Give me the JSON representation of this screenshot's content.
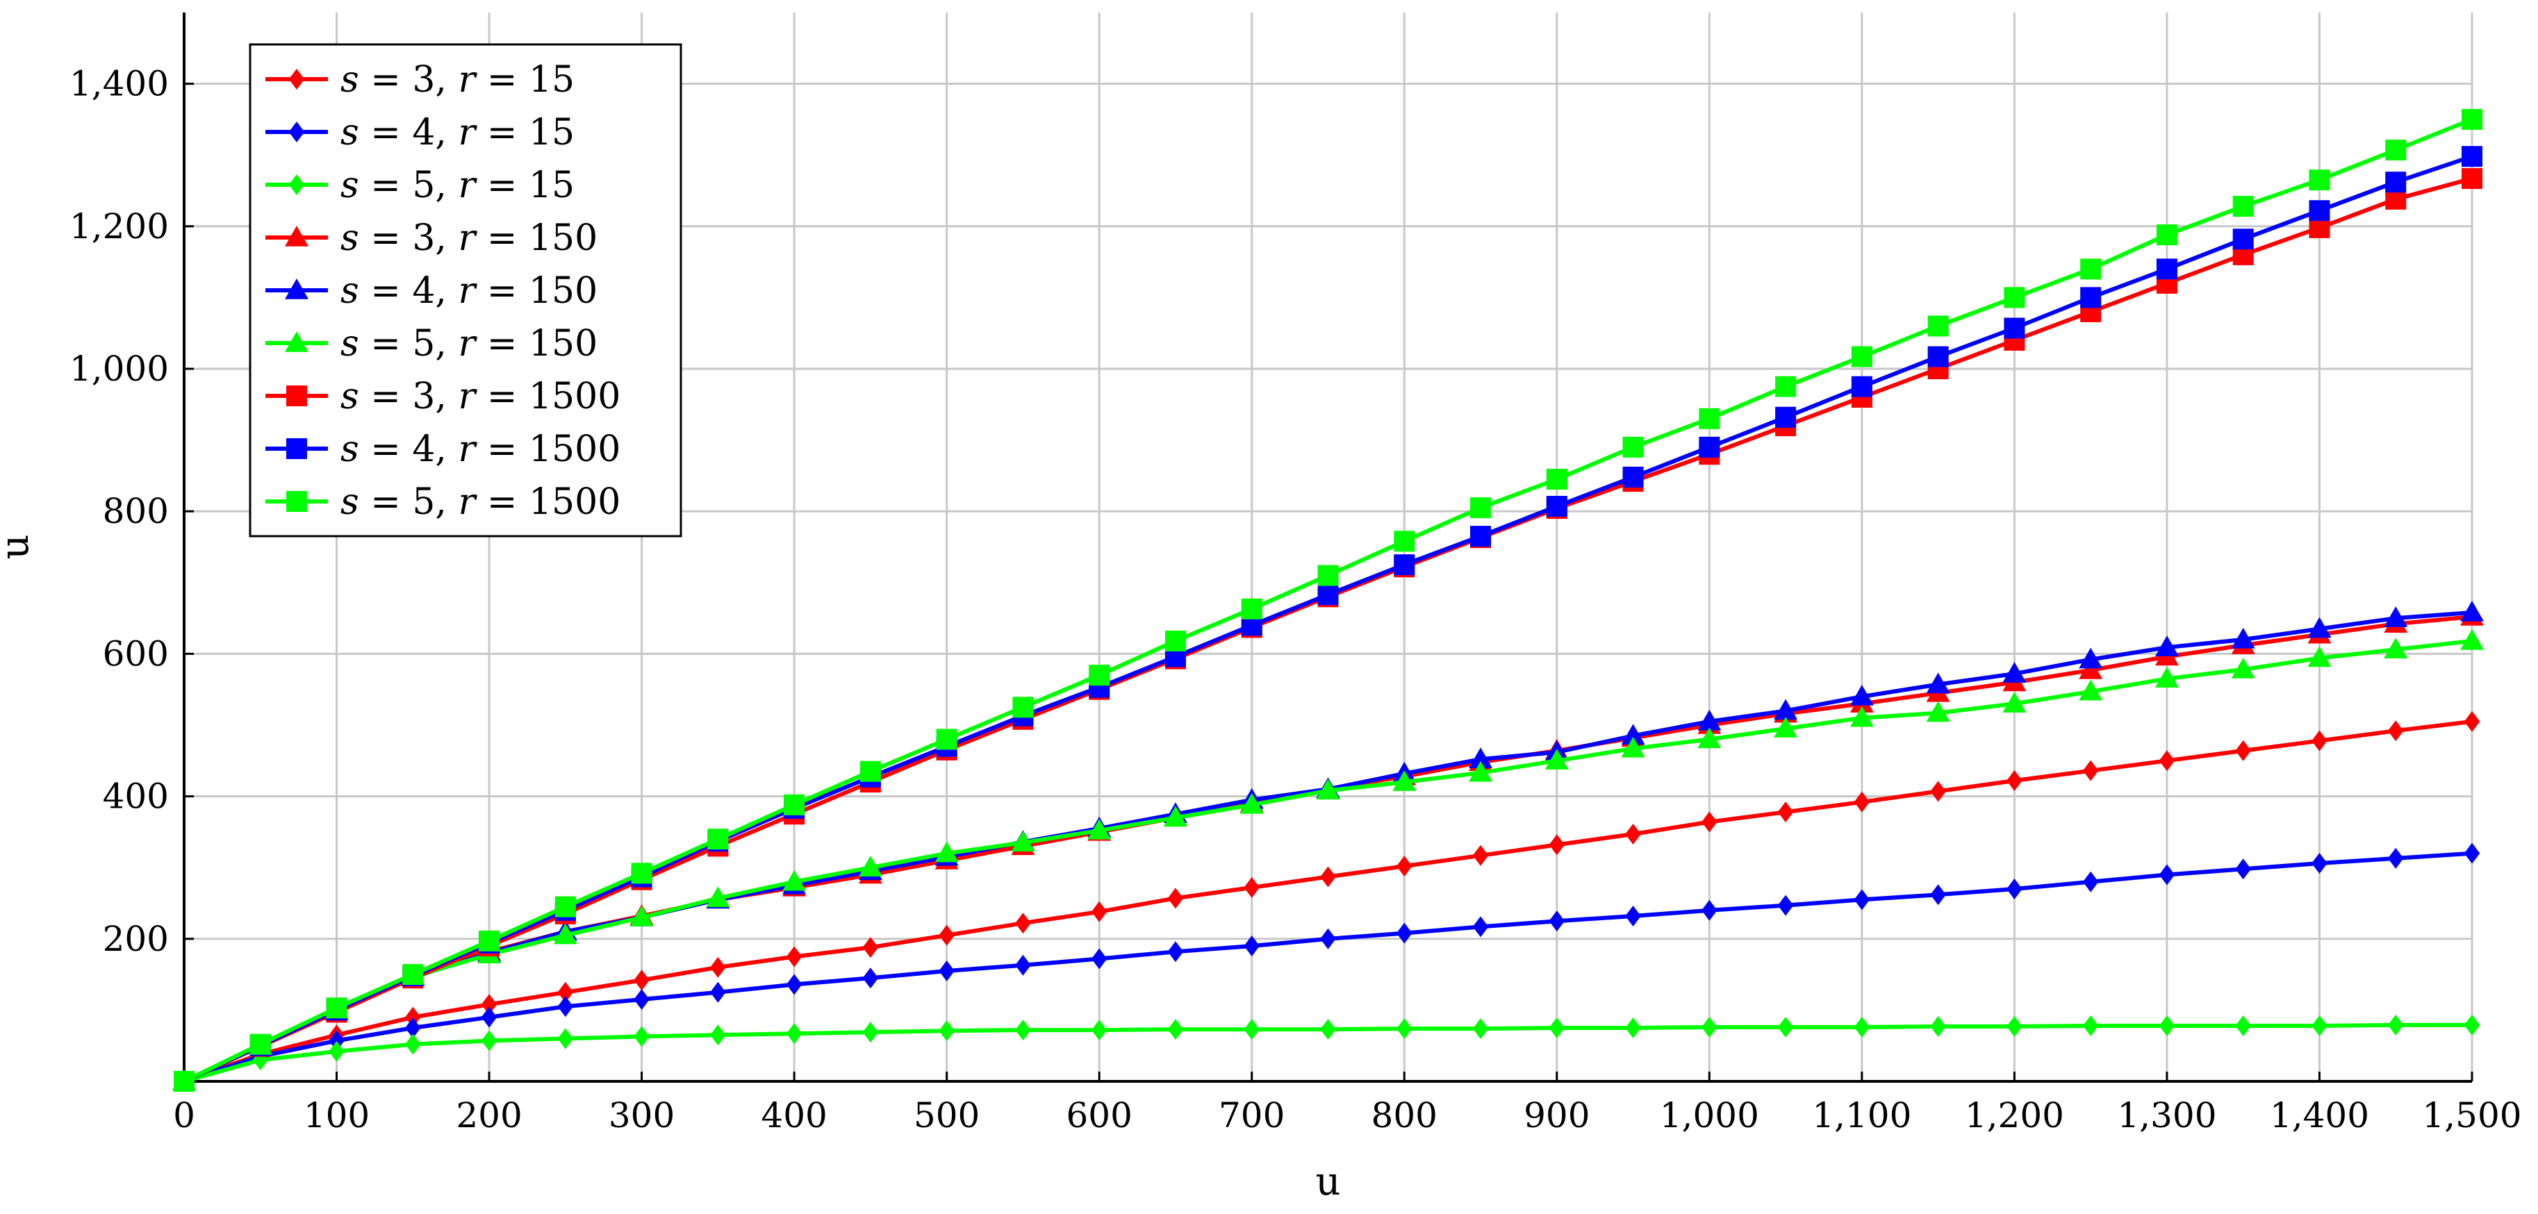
{
  "chart_data": {
    "type": "line",
    "title": "",
    "xlabel": "u",
    "ylabel": "u",
    "xlim": [
      0,
      1500
    ],
    "ylim": [
      0,
      1500
    ],
    "grid": true,
    "legend_position": "top-left",
    "xticks": [
      0,
      100,
      200,
      300,
      400,
      500,
      600,
      700,
      800,
      900,
      1000,
      1100,
      1200,
      1300,
      1400,
      1500
    ],
    "xtick_labels": [
      "0",
      "100",
      "200",
      "300",
      "400",
      "500",
      "600",
      "700",
      "800",
      "900",
      "1,000",
      "1,100",
      "1,200",
      "1,300",
      "1,400",
      "1,500"
    ],
    "yticks": [
      200,
      400,
      600,
      800,
      1000,
      1200,
      1400
    ],
    "ytick_labels": [
      "200",
      "400",
      "600",
      "800",
      "1,000",
      "1,200",
      "1,400"
    ],
    "series": [
      {
        "name": "s = 3, r = 15",
        "s": "3",
        "r": "15",
        "color": "#ff0000",
        "marker": "diamond",
        "x": [
          0,
          50,
          100,
          150,
          200,
          250,
          300,
          350,
          400,
          450,
          500,
          550,
          600,
          650,
          700,
          750,
          800,
          850,
          900,
          950,
          1000,
          1050,
          1100,
          1150,
          1200,
          1250,
          1300,
          1350,
          1400,
          1450,
          1500
        ],
        "y": [
          0,
          38,
          65,
          90,
          108,
          125,
          142,
          160,
          175,
          188,
          205,
          222,
          238,
          257,
          272,
          287,
          302,
          317,
          332,
          347,
          364,
          378,
          392,
          407,
          422,
          436,
          450,
          464,
          478,
          492,
          505
        ]
      },
      {
        "name": "s = 4, r = 15",
        "s": "4",
        "r": "15",
        "color": "#0000ff",
        "marker": "diamond",
        "x": [
          0,
          50,
          100,
          150,
          200,
          250,
          300,
          350,
          400,
          450,
          500,
          550,
          600,
          650,
          700,
          750,
          800,
          850,
          900,
          950,
          1000,
          1050,
          1100,
          1150,
          1200,
          1250,
          1300,
          1350,
          1400,
          1450,
          1500
        ],
        "y": [
          0,
          35,
          57,
          75,
          90,
          105,
          115,
          125,
          136,
          145,
          155,
          163,
          172,
          182,
          190,
          200,
          208,
          217,
          225,
          232,
          240,
          247,
          255,
          262,
          270,
          280,
          290,
          298,
          306,
          313,
          320
        ]
      },
      {
        "name": "s = 5, r = 15",
        "s": "5",
        "r": "15",
        "color": "#00ff00",
        "marker": "diamond",
        "x": [
          0,
          50,
          100,
          150,
          200,
          250,
          300,
          350,
          400,
          450,
          500,
          550,
          600,
          650,
          700,
          750,
          800,
          850,
          900,
          950,
          1000,
          1050,
          1100,
          1150,
          1200,
          1250,
          1300,
          1350,
          1400,
          1450,
          1500
        ],
        "y": [
          0,
          30,
          42,
          52,
          57,
          60,
          63,
          65,
          67,
          69,
          71,
          72,
          72,
          73,
          73,
          73,
          74,
          74,
          75,
          75,
          76,
          76,
          76,
          77,
          77,
          78,
          78,
          78,
          78,
          79,
          79
        ]
      },
      {
        "name": "s = 3, r = 150",
        "s": "3",
        "r": "150",
        "color": "#ff0000",
        "marker": "triangle",
        "x": [
          0,
          50,
          100,
          150,
          200,
          250,
          300,
          350,
          400,
          450,
          500,
          550,
          600,
          650,
          700,
          750,
          800,
          850,
          900,
          950,
          1000,
          1050,
          1100,
          1150,
          1200,
          1250,
          1300,
          1350,
          1400,
          1450,
          1500
        ],
        "y": [
          0,
          50,
          100,
          148,
          182,
          210,
          232,
          255,
          272,
          290,
          310,
          330,
          350,
          370,
          390,
          410,
          428,
          448,
          464,
          482,
          500,
          516,
          530,
          545,
          560,
          577,
          596,
          612,
          627,
          642,
          652
        ]
      },
      {
        "name": "s = 4, r = 150",
        "s": "4",
        "r": "150",
        "color": "#0000ff",
        "marker": "triangle",
        "x": [
          0,
          50,
          100,
          150,
          200,
          250,
          300,
          350,
          400,
          450,
          500,
          550,
          600,
          650,
          700,
          750,
          800,
          850,
          900,
          950,
          1000,
          1050,
          1100,
          1150,
          1200,
          1250,
          1300,
          1350,
          1400,
          1450,
          1500
        ],
        "y": [
          0,
          50,
          98,
          146,
          180,
          210,
          230,
          255,
          275,
          295,
          315,
          336,
          355,
          375,
          395,
          410,
          432,
          452,
          462,
          485,
          505,
          520,
          540,
          557,
          572,
          592,
          609,
          620,
          635,
          650,
          658
        ]
      },
      {
        "name": "s = 5, r = 150",
        "s": "5",
        "r": "150",
        "color": "#00ff00",
        "marker": "triangle",
        "x": [
          0,
          50,
          100,
          150,
          200,
          250,
          300,
          350,
          400,
          450,
          500,
          550,
          600,
          650,
          700,
          750,
          800,
          850,
          900,
          950,
          1000,
          1050,
          1100,
          1150,
          1200,
          1250,
          1300,
          1350,
          1400,
          1450,
          1500
        ],
        "y": [
          0,
          50,
          100,
          147,
          178,
          205,
          230,
          257,
          280,
          300,
          320,
          335,
          352,
          370,
          388,
          408,
          420,
          433,
          450,
          467,
          480,
          495,
          510,
          517,
          530,
          547,
          565,
          578,
          594,
          606,
          618
        ]
      },
      {
        "name": "s = 3, r = 1500",
        "s": "3",
        "r": "1500",
        "color": "#ff0000",
        "marker": "square",
        "x": [
          0,
          50,
          100,
          150,
          200,
          250,
          300,
          350,
          400,
          450,
          500,
          550,
          600,
          650,
          700,
          750,
          800,
          850,
          900,
          950,
          1000,
          1050,
          1100,
          1150,
          1200,
          1250,
          1300,
          1350,
          1400,
          1450,
          1500
        ],
        "y": [
          0,
          49,
          97,
          145,
          190,
          235,
          283,
          330,
          375,
          420,
          465,
          508,
          550,
          593,
          637,
          680,
          722,
          763,
          804,
          842,
          880,
          920,
          960,
          1000,
          1040,
          1080,
          1120,
          1160,
          1198,
          1238,
          1267
        ]
      },
      {
        "name": "s = 4, r = 1500",
        "s": "4",
        "r": "1500",
        "color": "#0000ff",
        "marker": "square",
        "x": [
          0,
          50,
          100,
          150,
          200,
          250,
          300,
          350,
          400,
          450,
          500,
          550,
          600,
          650,
          700,
          750,
          800,
          850,
          900,
          950,
          1000,
          1050,
          1100,
          1150,
          1200,
          1250,
          1300,
          1350,
          1400,
          1450,
          1500
        ],
        "y": [
          0,
          50,
          100,
          148,
          194,
          240,
          287,
          337,
          383,
          427,
          470,
          513,
          553,
          596,
          640,
          683,
          725,
          765,
          807,
          848,
          890,
          932,
          975,
          1017,
          1057,
          1100,
          1140,
          1182,
          1222,
          1262,
          1298
        ]
      },
      {
        "name": "s = 5, r = 1500",
        "s": "5",
        "r": "1500",
        "color": "#00ff00",
        "marker": "square",
        "x": [
          0,
          50,
          100,
          150,
          200,
          250,
          300,
          350,
          400,
          450,
          500,
          550,
          600,
          650,
          700,
          750,
          800,
          850,
          900,
          950,
          1000,
          1050,
          1100,
          1150,
          1200,
          1250,
          1300,
          1350,
          1400,
          1450,
          1500
        ],
        "y": [
          0,
          52,
          103,
          150,
          197,
          245,
          292,
          340,
          388,
          435,
          480,
          525,
          570,
          618,
          663,
          710,
          758,
          805,
          845,
          890,
          930,
          975,
          1017,
          1060,
          1100,
          1140,
          1188,
          1228,
          1265,
          1307,
          1350
        ]
      }
    ]
  }
}
